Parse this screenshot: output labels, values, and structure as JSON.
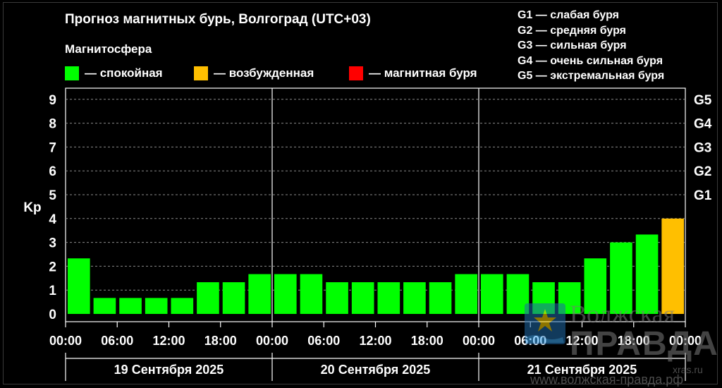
{
  "title": "Прогноз магнитных бурь, Волгоград (UTC+03)",
  "magnetosphere": {
    "heading": "Магнитосфера",
    "items": [
      {
        "label": "— спокойная",
        "color": "#00ff00"
      },
      {
        "label": "— возбужденная",
        "color": "#ffbf00"
      },
      {
        "label": "— магнитная буря",
        "color": "#ff0000"
      }
    ]
  },
  "g_legend": [
    "G1 — слабая буря",
    "G2 — средняя буря",
    "G3 — сильная буря",
    "G4 — очень сильная буря",
    "G5 — экстремальная буря"
  ],
  "chart_data": {
    "type": "bar",
    "ylabel": "Kp",
    "ylim": [
      0,
      9
    ],
    "y_ticks": [
      "0",
      "1",
      "2",
      "3",
      "4",
      "5",
      "6",
      "7",
      "8",
      "9"
    ],
    "right_ticks": [
      {
        "kp": 5,
        "label": "G1"
      },
      {
        "kp": 6,
        "label": "G2"
      },
      {
        "kp": 7,
        "label": "G3"
      },
      {
        "kp": 8,
        "label": "G4"
      },
      {
        "kp": 9,
        "label": "G5"
      }
    ],
    "x_tick_labels": [
      "00:00",
      "06:00",
      "12:00",
      "18:00",
      "00:00",
      "06:00",
      "12:00",
      "18:00",
      "00:00",
      "06:00",
      "12:00",
      "18:00",
      "00:00"
    ],
    "days": [
      "19 Сентября 2025",
      "20 Сентября 2025",
      "21 Сентября 2025"
    ],
    "values": [
      2.33,
      0.67,
      0.67,
      0.67,
      0.67,
      1.33,
      1.33,
      1.67,
      1.67,
      1.67,
      1.33,
      1.33,
      1.33,
      1.33,
      1.33,
      1.67,
      1.67,
      1.67,
      1.33,
      1.33,
      2.33,
      3.0,
      3.33,
      4.0
    ],
    "status": [
      "quiet",
      "quiet",
      "quiet",
      "quiet",
      "quiet",
      "quiet",
      "quiet",
      "quiet",
      "quiet",
      "quiet",
      "quiet",
      "quiet",
      "quiet",
      "quiet",
      "quiet",
      "quiet",
      "quiet",
      "quiet",
      "quiet",
      "quiet",
      "quiet",
      "quiet",
      "quiet",
      "active"
    ],
    "status_colors": {
      "quiet": "#00ff00",
      "active": "#ffbf00",
      "storm": "#ff0000"
    },
    "grid": true
  },
  "watermark": {
    "line1": "Волжская",
    "line2": "ПРАВДА",
    "line3": "xras.ru",
    "line4": "www.волжская-правда.рф"
  }
}
